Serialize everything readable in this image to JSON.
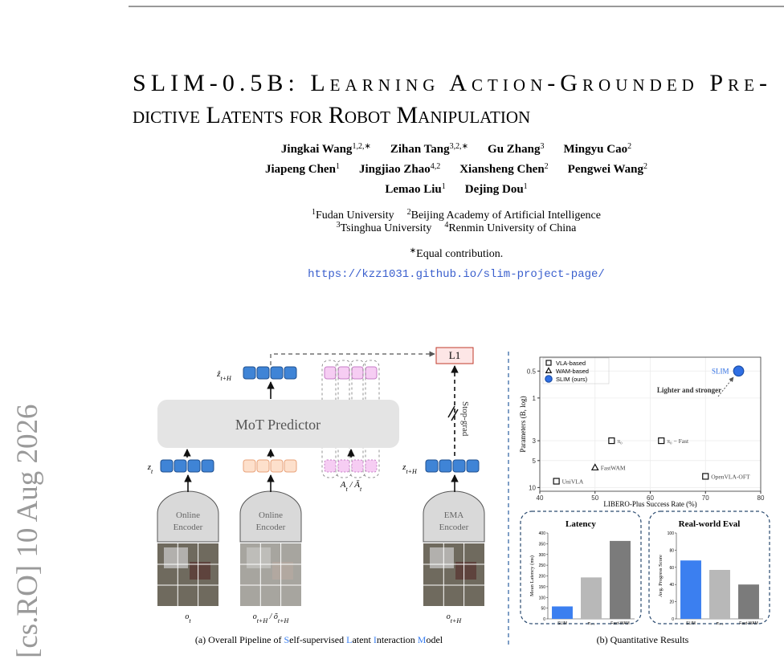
{
  "header": {
    "title_lines": [
      "SLIM-0.5B: Learning Action-Grounded Pre-",
      "dictive Latents for Robot Manipulation"
    ],
    "authors": [
      [
        {
          "name": "Jingkai Wang",
          "sup": "1,2,∗"
        },
        {
          "name": "Zihan Tang",
          "sup": "3,2,∗"
        },
        {
          "name": "Gu Zhang",
          "sup": "3"
        },
        {
          "name": "Mingyu Cao",
          "sup": "2"
        }
      ],
      [
        {
          "name": "Jiapeng Chen",
          "sup": "1"
        },
        {
          "name": "Jingjiao Zhao",
          "sup": "4,2"
        },
        {
          "name": "Xiansheng Chen",
          "sup": "2"
        },
        {
          "name": "Pengwei Wang",
          "sup": "2"
        }
      ],
      [
        {
          "name": "Lemao Liu",
          "sup": "1"
        },
        {
          "name": "Dejing Dou",
          "sup": "1"
        }
      ]
    ],
    "affiliations": [
      [
        {
          "sup": "1",
          "name": "Fudan University"
        },
        {
          "sup": "2",
          "name": "Beijing Academy of Artificial Intelligence"
        }
      ],
      [
        {
          "sup": "3",
          "name": "Tsinghua University"
        },
        {
          "sup": "4",
          "name": "Renmin University of China"
        }
      ]
    ],
    "equal": {
      "sup": "∗",
      "text": "Equal contribution."
    },
    "url": "https://kzz1031.github.io/slim-project-page/"
  },
  "stamp": "[cs.RO] 10 Aug 2026",
  "figure": {
    "diagram": {
      "l1": "L1",
      "predictor": "MoT Predictor",
      "stop_grad": "Stop-grad",
      "encoders": [
        [
          "Online",
          "Encoder"
        ],
        [
          "Online",
          "Encoder"
        ],
        [
          "EMA",
          "Encoder"
        ]
      ],
      "z_hat": [
        {
          "t": "ẑ"
        },
        {
          "t": "t+H",
          "sub": true
        }
      ],
      "z_t": [
        {
          "t": "z"
        },
        {
          "t": "t",
          "sub": true
        }
      ],
      "actions": [
        {
          "t": "A"
        },
        {
          "t": "t",
          "sub": true
        },
        {
          "t": " / "
        },
        {
          "t": "Ā"
        },
        {
          "t": "t",
          "sub": true
        }
      ],
      "z_target": [
        {
          "t": "z"
        },
        {
          "t": "t+H",
          "sub": true
        }
      ],
      "obs": [
        [
          {
            "t": "o"
          },
          {
            "t": "t",
            "sub": true
          }
        ],
        [
          {
            "t": "o"
          },
          {
            "t": "t+H",
            "sub": true
          },
          {
            "t": " / "
          },
          {
            "t": "õ"
          },
          {
            "t": "t+H",
            "sub": true
          }
        ],
        [
          {
            "t": "o"
          },
          {
            "t": "t+H",
            "sub": true
          }
        ]
      ]
    },
    "caption_a": [
      {
        "text": "(a) Overall Pipeline of "
      },
      {
        "text": "S",
        "color": "#3b7ff0"
      },
      {
        "text": "elf-supervised "
      },
      {
        "text": "L",
        "color": "#3b7ff0"
      },
      {
        "text": "atent "
      },
      {
        "text": "I",
        "color": "#3b7ff0"
      },
      {
        "text": "nteraction "
      },
      {
        "text": "M",
        "color": "#3b7ff0"
      },
      {
        "text": "odel"
      }
    ],
    "caption_b": "(b) Quantitative Results"
  },
  "chart_data": [
    {
      "type": "scatter",
      "x_label": "LIBERO-Plus Success Rate (%)",
      "y_label": "Parameters (B, log)",
      "xlim": [
        40,
        80
      ],
      "xticks": [
        40,
        50,
        60,
        70,
        80
      ],
      "ylim": [
        0.35,
        11
      ],
      "yticks": [
        0.5,
        1,
        3,
        5,
        10
      ],
      "y_log": true,
      "y_inverted": true,
      "grid": true,
      "annotation": "Lighter and stronger",
      "series": [
        {
          "name": "VLA-based",
          "marker": "square",
          "color": "#ffffff",
          "x": [
            53,
            62,
            70,
            43
          ],
          "y": [
            3,
            3,
            7.5,
            8.5
          ],
          "labels": [
            "π₀",
            "π₀ − Fast",
            "OpenVLA-OFT",
            "UniVLA"
          ]
        },
        {
          "name": "WAM-based",
          "marker": "triangle",
          "color": "#ffffff",
          "x": [
            50
          ],
          "y": [
            6
          ],
          "labels": [
            "FastWAM"
          ]
        },
        {
          "name": "SLIM (ours)",
          "marker": "circle",
          "color": "#2f6fe4",
          "x": [
            76
          ],
          "y": [
            0.5
          ],
          "labels": [
            "SLIM"
          ]
        }
      ]
    },
    {
      "type": "bar",
      "title": "Latency",
      "y_label": "Mean Latency (ms)",
      "categories": [
        "SLIM",
        "π₀.₅",
        "Fast-WAM"
      ],
      "values": [
        58,
        193,
        363
      ],
      "colors": [
        "#3b7ff0",
        "#b8b8b8",
        "#7b7b7b"
      ],
      "ylim": [
        0,
        400
      ],
      "yticks": [
        0,
        50,
        100,
        150,
        200,
        250,
        300,
        350,
        400
      ]
    },
    {
      "type": "bar",
      "title": "Real-world Eval",
      "y_label": "Avg. Progress Score",
      "categories": [
        "SLIM",
        "π₀.₅",
        "Fast-WAM"
      ],
      "values": [
        68,
        57,
        40
      ],
      "colors": [
        "#3b7ff0",
        "#b8b8b8",
        "#7b7b7b"
      ],
      "ylim": [
        0,
        100
      ],
      "yticks": [
        0,
        20,
        40,
        60,
        80,
        100
      ]
    }
  ]
}
